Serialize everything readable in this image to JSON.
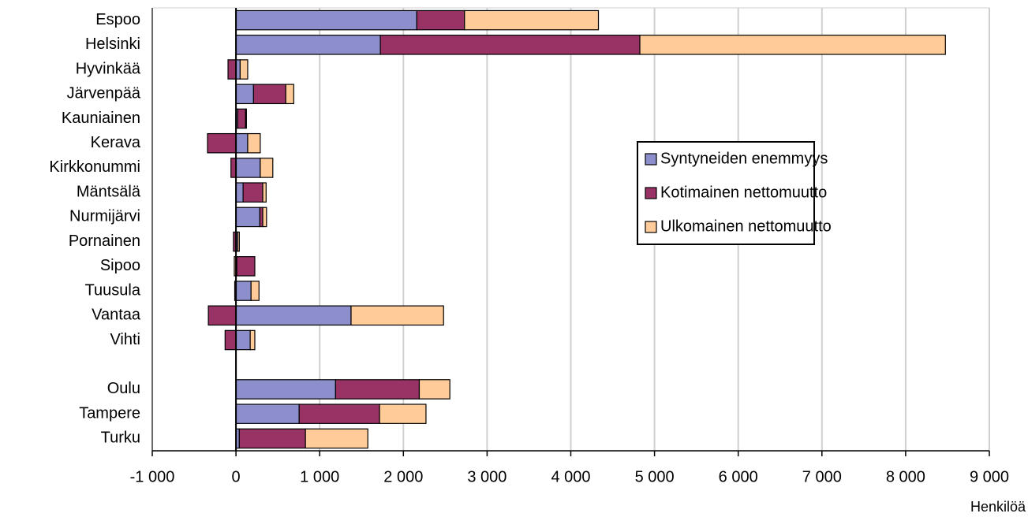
{
  "chart_data": {
    "type": "stacked-barh",
    "categories": [
      "Espoo",
      "Helsinki",
      "Hyvinkää",
      "Järvenpää",
      "Kauniainen",
      "Kerava",
      "Kirkkonummi",
      "Mäntsälä",
      "Nurmijärvi",
      "Pornainen",
      "Sipoo",
      "Tuusula",
      "Vantaa",
      "Vihti",
      null,
      "Oulu",
      "Tampere",
      "Turku"
    ],
    "series": [
      {
        "name": "Syntyneiden enemmyys",
        "color": "#8c8fcc",
        "values": [
          2160,
          1725,
          50,
          210,
          20,
          140,
          290,
          85,
          285,
          20,
          10,
          180,
          1375,
          170,
          null,
          1190,
          755,
          40
        ]
      },
      {
        "name": "Kotimainen nettomuutto",
        "color": "#993366",
        "values": [
          570,
          3100,
          -95,
          385,
          95,
          -340,
          -60,
          235,
          35,
          -30,
          215,
          -15,
          -330,
          -130,
          null,
          1000,
          960,
          790
        ]
      },
      {
        "name": "Ulkomainen nettomuutto",
        "color": "#ffcc99",
        "values": [
          1600,
          3650,
          90,
          95,
          10,
          150,
          150,
          40,
          45,
          20,
          -20,
          95,
          1105,
          55,
          null,
          365,
          555,
          745
        ]
      }
    ],
    "x_label": "Henkilöä",
    "xlim": [
      -1000,
      9000
    ],
    "xticks": [
      {
        "value": -1000,
        "label": "-1 000"
      },
      0,
      {
        "value": 1000,
        "label": "1 000"
      },
      {
        "value": 2000,
        "label": "2 000"
      },
      {
        "value": 3000,
        "label": "3 000"
      },
      {
        "value": 4000,
        "label": "4 000"
      },
      {
        "value": 5000,
        "label": "5 000"
      },
      {
        "value": 6000,
        "label": "6 000"
      },
      {
        "value": 7000,
        "label": "7 000"
      },
      {
        "value": 8000,
        "label": "8 000"
      },
      {
        "value": 9000,
        "label": "9 000"
      }
    ],
    "grid": true
  }
}
